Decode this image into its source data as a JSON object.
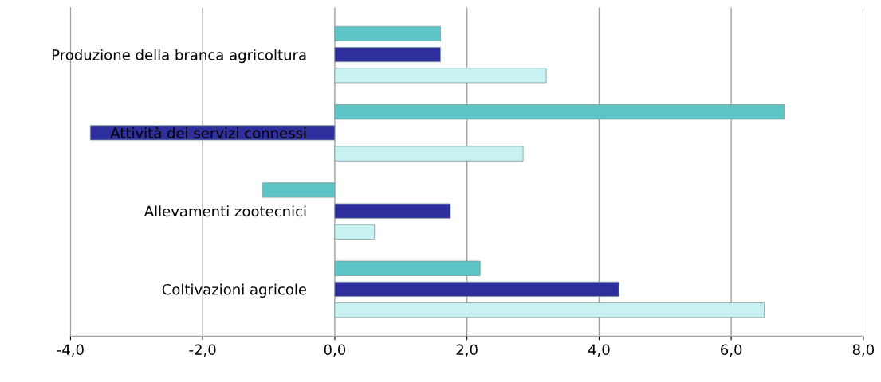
{
  "chart_data": {
    "type": "bar",
    "orientation": "horizontal",
    "categories": [
      "Produzione della branca agricoltura",
      "Attività dei servizi connessi",
      "Allevamenti zootecnici",
      "Coltivazioni agricole"
    ],
    "series": [
      {
        "color": "#c8f2f2",
        "values": [
          3.2,
          2.85,
          0.6,
          6.5
        ]
      },
      {
        "color": "#2e2e9c",
        "values": [
          1.6,
          -3.7,
          1.75,
          4.3
        ]
      },
      {
        "color": "#5ec4c6",
        "values": [
          1.6,
          6.8,
          -1.1,
          2.2
        ]
      }
    ],
    "xlim": [
      -4,
      8
    ],
    "xticks": [
      {
        "value": -4,
        "label": "-4,0"
      },
      {
        "value": -2,
        "label": "-2,0"
      },
      {
        "value": 0,
        "label": "0,0"
      },
      {
        "value": 2,
        "label": "2,0"
      },
      {
        "value": 4,
        "label": "4,0"
      },
      {
        "value": 6,
        "label": "6,0"
      },
      {
        "value": 8,
        "label": "8,0"
      }
    ],
    "grid": "x"
  }
}
